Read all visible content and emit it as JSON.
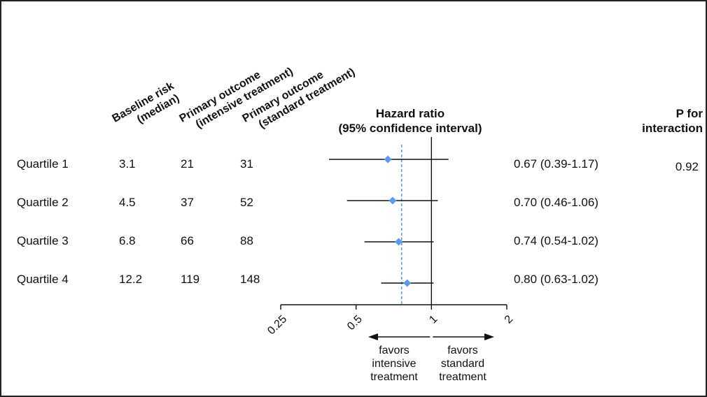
{
  "headers": {
    "baseline": [
      "Baseline risk",
      "(median)"
    ],
    "intensive": [
      "Primary outcome",
      "(intensive treatment)"
    ],
    "standard": [
      "Primary outcome",
      "(standard treatment)"
    ],
    "hazard": [
      "Hazard ratio",
      "(95% confidence interval)"
    ],
    "p_interaction": [
      "P for",
      "interaction"
    ]
  },
  "rows": [
    {
      "label": "Quartile 1",
      "baseline": "3.1",
      "intensive": "21",
      "standard": "31",
      "ci_text": "0.67 (0.39-1.17)",
      "p": "0.92"
    },
    {
      "label": "Quartile 2",
      "baseline": "4.5",
      "intensive": "37",
      "standard": "52",
      "ci_text": "0.70 (0.46-1.06)",
      "p": ""
    },
    {
      "label": "Quartile 3",
      "baseline": "6.8",
      "intensive": "66",
      "standard": "88",
      "ci_text": "0.74 (0.54-1.02)",
      "p": ""
    },
    {
      "label": "Quartile 4",
      "baseline": "12.2",
      "intensive": "119",
      "standard": "148",
      "ci_text": "0.80 (0.63-1.02)",
      "p": ""
    }
  ],
  "favors": {
    "left": [
      "favors",
      "intensive",
      "treatment"
    ],
    "right": [
      "favors",
      "standard",
      "treatment"
    ]
  },
  "colors": {
    "marker": "#5b9bec",
    "reference_dashed": "#5b9bec",
    "line": "#111111"
  },
  "chart_data": {
    "type": "forest",
    "xscale": "log2",
    "xlim": [
      0.25,
      2
    ],
    "xticks": [
      0.25,
      0.5,
      1,
      2
    ],
    "xtick_labels": [
      "0.25",
      "0.5",
      "1",
      "2"
    ],
    "null_line": 1,
    "pooled_reference_dashed": 0.76,
    "series": [
      {
        "category": "Quartile 1",
        "hr": 0.67,
        "lower": 0.39,
        "upper": 1.17
      },
      {
        "category": "Quartile 2",
        "hr": 0.7,
        "lower": 0.46,
        "upper": 1.06
      },
      {
        "category": "Quartile 3",
        "hr": 0.74,
        "lower": 0.54,
        "upper": 1.02
      },
      {
        "category": "Quartile 4",
        "hr": 0.8,
        "lower": 0.63,
        "upper": 1.02
      }
    ]
  }
}
